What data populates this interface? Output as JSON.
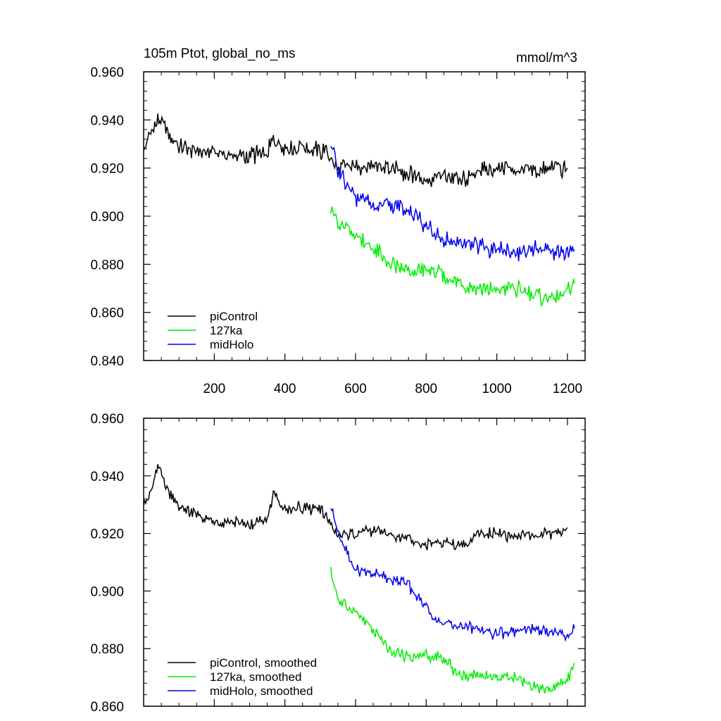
{
  "figure": {
    "title": "105m Ptot, global_no_ms",
    "units": "mmol/m^3"
  },
  "chart_data": [
    {
      "type": "line",
      "panel": "top",
      "title": "105m Ptot, global_no_ms",
      "units_label": "mmol/m^3",
      "xlim": [
        0,
        1250
      ],
      "ylim": [
        0.84,
        0.96
      ],
      "x_ticks": [
        200,
        400,
        600,
        800,
        1000,
        1200
      ],
      "x_tick_labels": [
        "200",
        "400",
        "600",
        "800",
        "1000",
        "1200"
      ],
      "y_ticks": [
        0.84,
        0.86,
        0.88,
        0.9,
        0.92,
        0.94,
        0.96
      ],
      "y_tick_labels": [
        "0.840",
        "0.860",
        "0.880",
        "0.900",
        "0.920",
        "0.940",
        "0.960"
      ],
      "legend_position": "bottom-left",
      "series": [
        {
          "name": "piControl",
          "color": "#000000",
          "x": [
            0,
            20,
            40,
            60,
            80,
            100,
            150,
            200,
            250,
            300,
            350,
            370,
            400,
            450,
            500,
            520,
            550,
            600,
            650,
            700,
            750,
            800,
            850,
            900,
            950,
            1000,
            1050,
            1100,
            1150,
            1200
          ],
          "y": [
            0.928,
            0.935,
            0.94,
            0.938,
            0.932,
            0.93,
            0.927,
            0.927,
            0.925,
            0.925,
            0.926,
            0.932,
            0.928,
            0.929,
            0.927,
            0.926,
            0.92,
            0.92,
            0.921,
            0.92,
            0.918,
            0.915,
            0.917,
            0.915,
            0.919,
            0.92,
            0.92,
            0.919,
            0.92,
            0.92
          ]
        },
        {
          "name": "127ka",
          "color": "#00ee00",
          "x": [
            530,
            550,
            600,
            650,
            700,
            750,
            800,
            850,
            900,
            950,
            1000,
            1050,
            1100,
            1150,
            1200,
            1220
          ],
          "y": [
            0.905,
            0.896,
            0.893,
            0.886,
            0.88,
            0.877,
            0.878,
            0.875,
            0.871,
            0.87,
            0.869,
            0.87,
            0.867,
            0.866,
            0.868,
            0.872
          ]
        },
        {
          "name": "midHolo",
          "color": "#0000ee",
          "x": [
            530,
            550,
            600,
            650,
            700,
            750,
            800,
            850,
            900,
            950,
            1000,
            1050,
            1100,
            1150,
            1200,
            1220
          ],
          "y": [
            0.93,
            0.92,
            0.908,
            0.905,
            0.904,
            0.902,
            0.896,
            0.89,
            0.888,
            0.887,
            0.886,
            0.885,
            0.886,
            0.886,
            0.884,
            0.886
          ]
        }
      ]
    },
    {
      "type": "line",
      "panel": "bottom",
      "xlim": [
        0,
        1250
      ],
      "ylim": [
        0.86,
        0.96
      ],
      "x_ticks": [
        200,
        400,
        600,
        800,
        1000,
        1200
      ],
      "y_ticks": [
        0.86,
        0.88,
        0.9,
        0.92,
        0.94,
        0.96
      ],
      "y_tick_labels": [
        "0.860",
        "0.880",
        "0.900",
        "0.920",
        "0.940",
        "0.960"
      ],
      "legend_position": "bottom-left",
      "series": [
        {
          "name": "piControl, smoothed",
          "color": "#000000",
          "x": [
            0,
            20,
            40,
            60,
            80,
            100,
            150,
            200,
            250,
            300,
            350,
            370,
            400,
            450,
            500,
            520,
            550,
            600,
            650,
            700,
            750,
            800,
            850,
            900,
            950,
            1000,
            1050,
            1100,
            1150,
            1200
          ],
          "y": [
            0.929,
            0.934,
            0.944,
            0.937,
            0.932,
            0.93,
            0.926,
            0.924,
            0.924,
            0.923,
            0.925,
            0.934,
            0.928,
            0.929,
            0.928,
            0.926,
            0.919,
            0.92,
            0.921,
            0.919,
            0.918,
            0.916,
            0.917,
            0.915,
            0.92,
            0.92,
            0.919,
            0.919,
            0.92,
            0.922
          ]
        },
        {
          "name": "127ka, smoothed",
          "color": "#00ee00",
          "x": [
            530,
            550,
            600,
            650,
            700,
            750,
            800,
            850,
            900,
            950,
            1000,
            1050,
            1100,
            1150,
            1200,
            1220
          ],
          "y": [
            0.907,
            0.897,
            0.893,
            0.886,
            0.879,
            0.877,
            0.878,
            0.876,
            0.87,
            0.871,
            0.87,
            0.87,
            0.867,
            0.866,
            0.869,
            0.875
          ]
        },
        {
          "name": "midHolo, smoothed",
          "color": "#0000ee",
          "x": [
            530,
            550,
            600,
            650,
            700,
            750,
            800,
            850,
            900,
            950,
            1000,
            1050,
            1100,
            1150,
            1200,
            1220
          ],
          "y": [
            0.929,
            0.92,
            0.907,
            0.906,
            0.904,
            0.902,
            0.894,
            0.888,
            0.888,
            0.887,
            0.885,
            0.886,
            0.887,
            0.886,
            0.884,
            0.887
          ]
        }
      ]
    }
  ]
}
